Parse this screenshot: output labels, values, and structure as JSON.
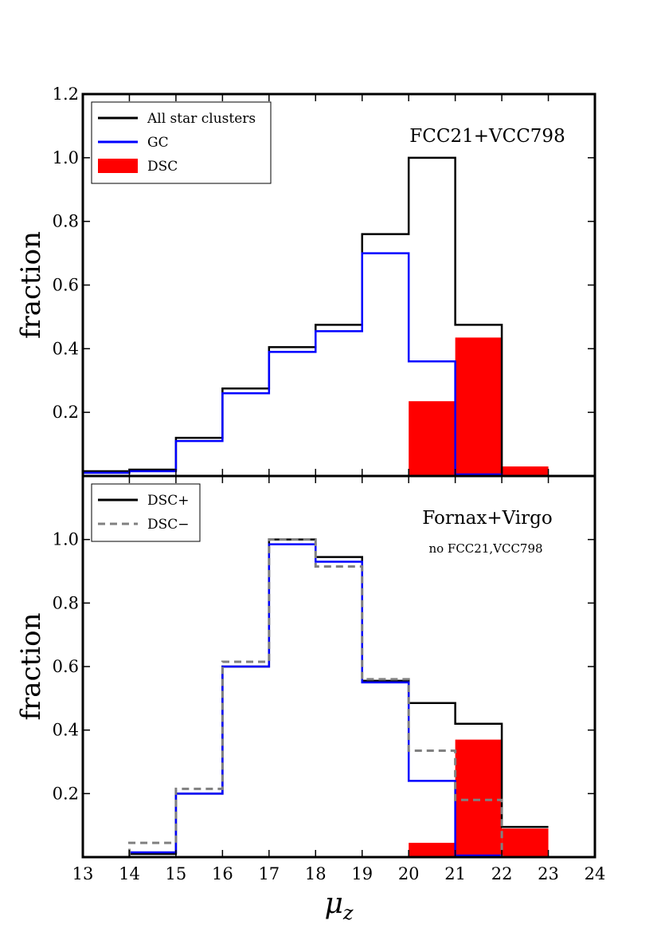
{
  "chart_data": [
    {
      "type": "histogram",
      "panel": "top",
      "annotation": "FCC21+VCC798",
      "ylabel": "fraction",
      "xlim": [
        13,
        24
      ],
      "ylim": [
        0,
        1.2
      ],
      "yticks": [
        "0.2",
        "0.4",
        "0.6",
        "0.8",
        "1.0",
        "1.2"
      ],
      "bin_edges": [
        13,
        14,
        15,
        16,
        17,
        18,
        19,
        20,
        21,
        22,
        23
      ],
      "legend": [
        {
          "label": "All star clusters",
          "color": "#000000",
          "style": "solid"
        },
        {
          "label": "GC",
          "color": "#0000ff",
          "style": "solid"
        },
        {
          "label": "DSC",
          "color": "#ff0000",
          "style": "fill"
        }
      ],
      "series": [
        {
          "name": "All star clusters",
          "kind": "step",
          "color": "#000000",
          "dash": false,
          "values": [
            0.015,
            0.02,
            0.12,
            0.275,
            0.405,
            0.475,
            0.76,
            1.0,
            0.475,
            0.0
          ]
        },
        {
          "name": "GC",
          "kind": "step",
          "color": "#0000ff",
          "dash": false,
          "values": [
            0.01,
            0.015,
            0.11,
            0.26,
            0.39,
            0.455,
            0.7,
            0.36,
            0.005,
            0.0
          ]
        },
        {
          "name": "DSC",
          "kind": "bar",
          "color": "#ff0000",
          "values": [
            0,
            0,
            0,
            0,
            0,
            0,
            0,
            0.235,
            0.435,
            0.03
          ]
        }
      ]
    },
    {
      "type": "histogram",
      "panel": "bottom",
      "annotation": "Fornax+Virgo",
      "annotation2": "no FCC21,VCC798",
      "ylabel": "fraction",
      "xlabel_main": "μ",
      "xlabel_sub": "z",
      "xlim": [
        13,
        24
      ],
      "ylim": [
        0,
        1.2
      ],
      "yticks": [
        "0.2",
        "0.4",
        "0.6",
        "0.8",
        "1.0"
      ],
      "xticks": [
        "13",
        "14",
        "15",
        "16",
        "17",
        "18",
        "19",
        "20",
        "21",
        "22",
        "23",
        "24"
      ],
      "bin_edges": [
        13,
        14,
        15,
        16,
        17,
        18,
        19,
        20,
        21,
        22,
        23
      ],
      "legend": [
        {
          "label": "DSC+",
          "color": "#000000",
          "style": "solid"
        },
        {
          "label": "DSC−",
          "color": "#808080",
          "style": "dashed"
        }
      ],
      "series": [
        {
          "name": "DSC+ (all)",
          "kind": "step",
          "color": "#000000",
          "dash": false,
          "values": [
            0.0,
            0.01,
            0.2,
            0.6,
            1.0,
            0.945,
            0.555,
            0.485,
            0.42,
            0.095
          ]
        },
        {
          "name": "DSC+ (GC)",
          "kind": "step",
          "color": "#0000ff",
          "dash": false,
          "values": [
            0.0,
            0.015,
            0.2,
            0.6,
            0.985,
            0.93,
            0.55,
            0.24,
            0.005,
            0.0
          ]
        },
        {
          "name": "DSC+ (DSC)",
          "kind": "bar",
          "color": "#ff0000",
          "values": [
            0,
            0,
            0,
            0,
            0,
            0,
            0,
            0.045,
            0.37,
            0.09
          ]
        },
        {
          "name": "DSC−",
          "kind": "step",
          "color": "#808080",
          "dash": true,
          "values": [
            0.0,
            0.045,
            0.215,
            0.615,
            1.0,
            0.915,
            0.56,
            0.335,
            0.18,
            0.0
          ]
        }
      ]
    }
  ]
}
